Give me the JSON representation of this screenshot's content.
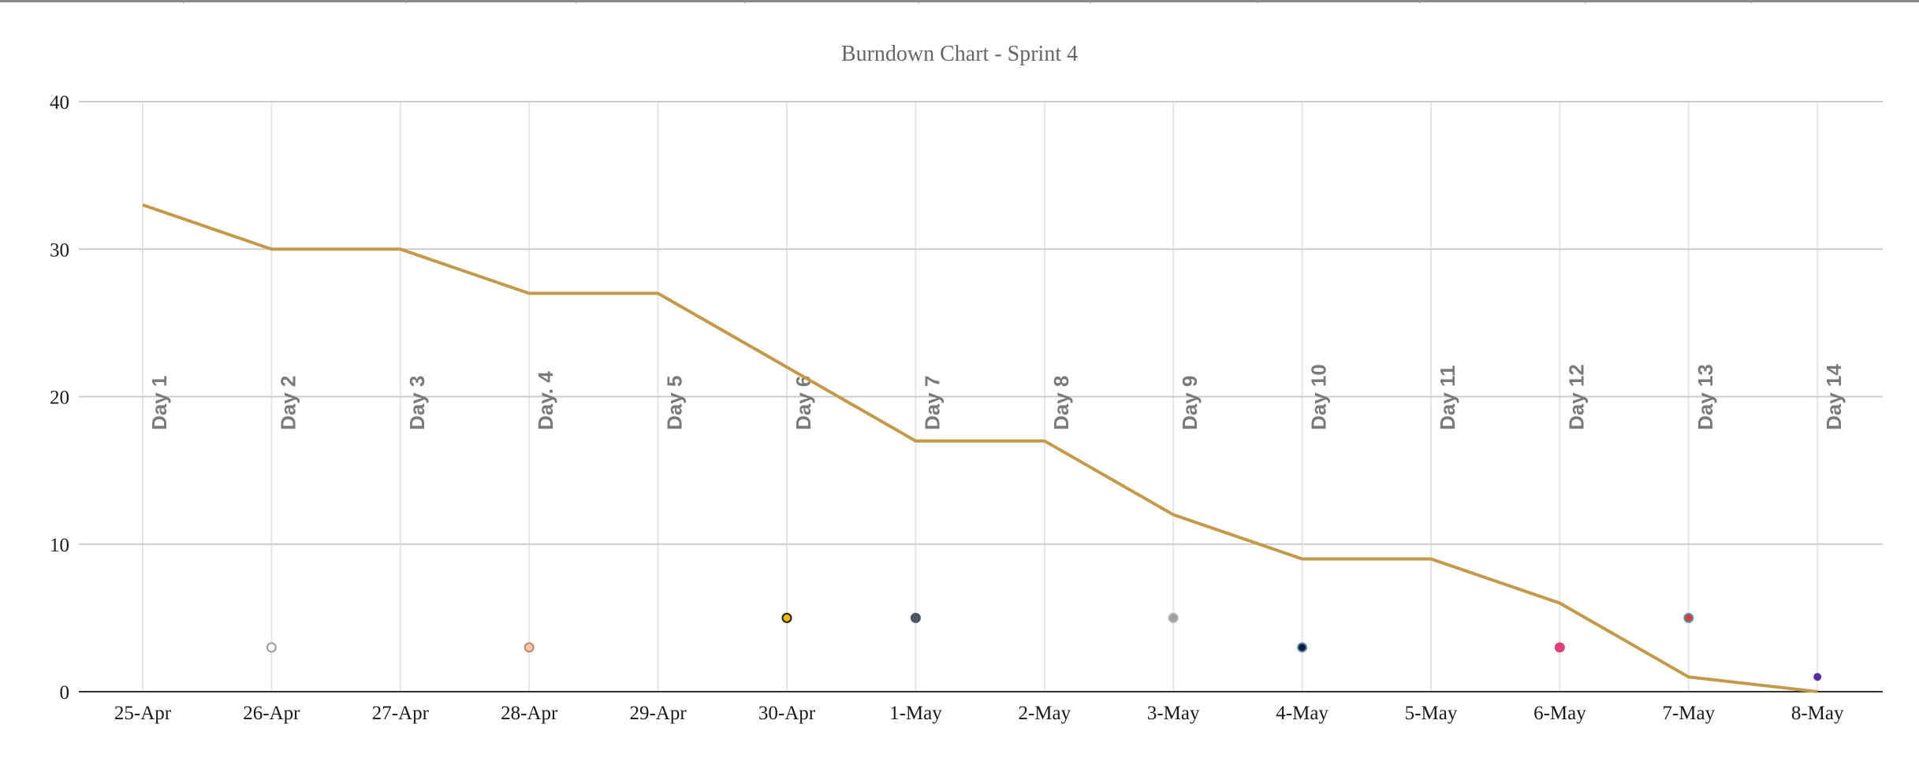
{
  "chart_data": {
    "type": "line",
    "title": "Burndown Chart - Sprint 4",
    "xlabel": "",
    "ylabel": "",
    "ylim": [
      0,
      40
    ],
    "yticks": [
      0,
      10,
      20,
      30,
      40
    ],
    "grid": true,
    "categories": [
      "25-Apr",
      "26-Apr",
      "27-Apr",
      "28-Apr",
      "29-Apr",
      "30-Apr",
      "1-May",
      "2-May",
      "3-May",
      "4-May",
      "5-May",
      "6-May",
      "7-May",
      "8-May"
    ],
    "day_labels": [
      "Day 1",
      "Day 2",
      "Day 3",
      "Day. 4",
      "Day 5",
      "Day 6",
      "Day 7",
      "Day 8",
      "Day 9",
      "Day 10",
      "Day 11",
      "Day 12",
      "Day 13",
      "Day 14"
    ],
    "series": [
      {
        "values": [
          33,
          30,
          30,
          27,
          27,
          22,
          17,
          17,
          12,
          9,
          9,
          6,
          1,
          0
        ],
        "color": "#c49a4a"
      }
    ],
    "markers": [
      {
        "category": "26-Apr",
        "value": 3,
        "fill": "#ffffff",
        "stroke": "#9a9a9a"
      },
      {
        "category": "28-Apr",
        "value": 3,
        "fill": "#f2c9a8",
        "stroke": "#c08a6a"
      },
      {
        "category": "30-Apr",
        "value": 5,
        "fill": "#f2b800",
        "stroke": "#222222"
      },
      {
        "category": "1-May",
        "value": 5,
        "fill": "#555555",
        "stroke": "#445577"
      },
      {
        "category": "3-May",
        "value": 5,
        "fill": "#a0a0a0",
        "stroke": "#b0b0b0"
      },
      {
        "category": "4-May",
        "value": 3,
        "fill": "#0a1f3f",
        "stroke": "#6a8ab0"
      },
      {
        "category": "6-May",
        "value": 3,
        "fill": "#e0407a",
        "stroke": "#e0407a"
      },
      {
        "category": "7-May",
        "value": 5,
        "fill": "#d03a4a",
        "stroke": "#5a9a9a"
      },
      {
        "category": "8-May",
        "value": 1,
        "fill": "#5a2f9a",
        "stroke": "#5a2f9a"
      }
    ]
  }
}
